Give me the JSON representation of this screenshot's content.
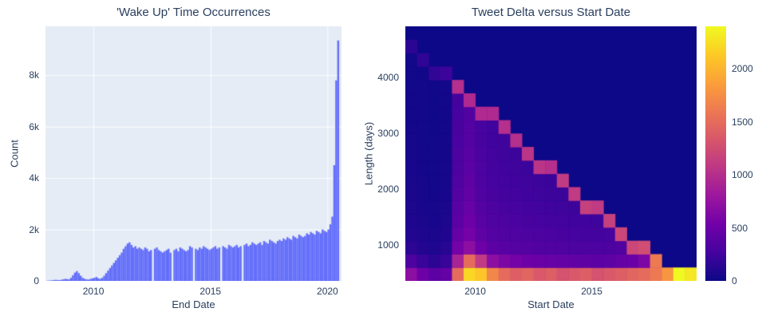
{
  "chart_data": [
    {
      "type": "bar",
      "title": "'Wake Up' Time Occurrences",
      "xlabel": "End Date",
      "ylabel": "Count",
      "x_start": 2008.0,
      "bin_years": 0.0833333,
      "xlim": [
        2007.95,
        2020.6
      ],
      "ylim": [
        0,
        9900
      ],
      "bar_color": "#636efa",
      "plot_bg": "#e5ecf6",
      "grid_color": "#ffffff",
      "xticks": [
        {
          "v": 2010,
          "label": "2010"
        },
        {
          "v": 2015,
          "label": "2015"
        },
        {
          "v": 2020,
          "label": "2020"
        }
      ],
      "yticks": [
        {
          "v": 0,
          "label": "0"
        },
        {
          "v": 2000,
          "label": "2k"
        },
        {
          "v": 4000,
          "label": "4k"
        },
        {
          "v": 6000,
          "label": "6k"
        },
        {
          "v": 8000,
          "label": "8k"
        }
      ],
      "values": [
        10,
        15,
        20,
        30,
        40,
        35,
        30,
        40,
        60,
        80,
        70,
        60,
        120,
        220,
        320,
        380,
        300,
        200,
        120,
        80,
        60,
        50,
        80,
        100,
        120,
        150,
        100,
        80,
        120,
        200,
        300,
        400,
        500,
        600,
        700,
        800,
        900,
        1000,
        1100,
        1250,
        1350,
        1450,
        1500,
        1400,
        1300,
        1350,
        1250,
        1300,
        1250,
        1200,
        1300,
        1250,
        1150,
        1200,
        0,
        1250,
        1300,
        1200,
        1150,
        1100,
        1150,
        1200,
        1250,
        1100,
        0,
        1200,
        1250,
        1150,
        1300,
        1250,
        1200,
        1150,
        1200,
        1350,
        1300,
        0,
        1250,
        1200,
        1300,
        1250,
        1350,
        1300,
        1250,
        1200,
        1250,
        1300,
        1350,
        1250,
        1300,
        0,
        1350,
        1300,
        1250,
        1400,
        1350,
        1300,
        1350,
        1400,
        1300,
        1350,
        0,
        1400,
        1450,
        1350,
        1400,
        1500,
        1450,
        1400,
        1450,
        1500,
        1400,
        1550,
        1500,
        1450,
        1600,
        1550,
        1500,
        1450,
        1550,
        1600,
        1550,
        1650,
        1600,
        1700,
        1650,
        1600,
        1750,
        1700,
        1650,
        1800,
        1750,
        1700,
        1750,
        1850,
        1800,
        1900,
        1850,
        1800,
        1950,
        1900,
        1850,
        2000,
        1950,
        1900,
        2000,
        2200,
        2500,
        4500,
        7800,
        9350
      ]
    },
    {
      "type": "heatmap",
      "title": "Tweet Delta versus Start Date",
      "xlabel": "Start Date",
      "ylabel": "Length (days)",
      "x0": 2007.0,
      "dx": 0.5,
      "y0": 350,
      "dy": 240,
      "xlim": [
        2007.0,
        2019.5
      ],
      "ylim": [
        350,
        4910
      ],
      "zmin": 0,
      "zmax": 2400,
      "xticks": [
        {
          "v": 2010,
          "label": "2010"
        },
        {
          "v": 2015,
          "label": "2015"
        }
      ],
      "yticks": [
        {
          "v": 1000,
          "label": "1000"
        },
        {
          "v": 2000,
          "label": "2000"
        },
        {
          "v": 3000,
          "label": "3000"
        },
        {
          "v": 4000,
          "label": "4000"
        }
      ],
      "colorbar_ticks": [
        {
          "v": 0,
          "label": "0"
        },
        {
          "v": 500,
          "label": "500"
        },
        {
          "v": 1000,
          "label": "1000"
        },
        {
          "v": 1500,
          "label": "1500"
        },
        {
          "v": 2000,
          "label": "2000"
        }
      ],
      "colorscale": [
        [
          0.0,
          "#0d0887"
        ],
        [
          0.1111,
          "#46039f"
        ],
        [
          0.2222,
          "#7201a8"
        ],
        [
          0.3333,
          "#9c179e"
        ],
        [
          0.4444,
          "#bd3786"
        ],
        [
          0.5556,
          "#d8576b"
        ],
        [
          0.6667,
          "#ed7953"
        ],
        [
          0.7778,
          "#fb9f3a"
        ],
        [
          0.8889,
          "#fdca26"
        ],
        [
          1.0,
          "#f0f921"
        ]
      ],
      "z": [
        [
          700,
          500,
          400,
          450,
          1500,
          2200,
          2100,
          1700,
          1500,
          1400,
          1450,
          1350,
          1400,
          1300,
          1350,
          1400,
          1300,
          1350,
          1400,
          1450,
          1500,
          1600,
          1800,
          2400,
          2300
        ],
        [
          300,
          200,
          150,
          200,
          900,
          1500,
          1100,
          700,
          600,
          550,
          500,
          480,
          460,
          450,
          430,
          420,
          400,
          420,
          450,
          480,
          600,
          1600,
          0,
          0,
          0
        ],
        [
          150,
          100,
          80,
          120,
          550,
          700,
          500,
          400,
          380,
          360,
          350,
          340,
          330,
          320,
          310,
          300,
          300,
          310,
          330,
          1200,
          1250,
          0,
          0,
          0,
          0
        ],
        [
          100,
          80,
          60,
          90,
          450,
          550,
          420,
          350,
          330,
          320,
          310,
          300,
          290,
          280,
          270,
          260,
          260,
          270,
          1200,
          0,
          0,
          0,
          0,
          0,
          0
        ],
        [
          80,
          60,
          50,
          70,
          400,
          500,
          380,
          320,
          300,
          290,
          280,
          270,
          260,
          250,
          245,
          240,
          235,
          1150,
          0,
          0,
          0,
          0,
          0,
          0,
          0
        ],
        [
          70,
          50,
          40,
          60,
          380,
          460,
          350,
          300,
          280,
          270,
          260,
          250,
          240,
          230,
          225,
          1150,
          1100,
          0,
          0,
          0,
          0,
          0,
          0,
          0,
          0
        ],
        [
          60,
          45,
          35,
          50,
          350,
          430,
          330,
          280,
          260,
          250,
          240,
          230,
          220,
          215,
          1100,
          0,
          0,
          0,
          0,
          0,
          0,
          0,
          0,
          0,
          0
        ],
        [
          55,
          40,
          30,
          45,
          330,
          410,
          310,
          270,
          250,
          240,
          230,
          220,
          210,
          1100,
          0,
          0,
          0,
          0,
          0,
          0,
          0,
          0,
          0,
          0,
          0
        ],
        [
          50,
          35,
          28,
          40,
          310,
          390,
          300,
          260,
          240,
          230,
          215,
          1050,
          1000,
          0,
          0,
          0,
          0,
          0,
          0,
          0,
          0,
          0,
          0,
          0,
          0
        ],
        [
          45,
          32,
          25,
          38,
          300,
          370,
          290,
          250,
          235,
          225,
          1050,
          0,
          0,
          0,
          0,
          0,
          0,
          0,
          0,
          0,
          0,
          0,
          0,
          0,
          0
        ],
        [
          40,
          30,
          22,
          35,
          290,
          360,
          280,
          245,
          230,
          1000,
          0,
          0,
          0,
          0,
          0,
          0,
          0,
          0,
          0,
          0,
          0,
          0,
          0,
          0,
          0
        ],
        [
          38,
          28,
          20,
          32,
          280,
          350,
          270,
          240,
          1000,
          0,
          0,
          0,
          0,
          0,
          0,
          0,
          0,
          0,
          0,
          0,
          0,
          0,
          0,
          0,
          0
        ],
        [
          35,
          26,
          18,
          30,
          270,
          340,
          950,
          950,
          0,
          0,
          0,
          0,
          0,
          0,
          0,
          0,
          0,
          0,
          0,
          0,
          0,
          0,
          0,
          0,
          0
        ],
        [
          32,
          24,
          16,
          28,
          260,
          950,
          0,
          0,
          0,
          0,
          0,
          0,
          0,
          0,
          0,
          0,
          0,
          0,
          0,
          0,
          0,
          0,
          0,
          0,
          0
        ],
        [
          30,
          22,
          15,
          25,
          1000,
          0,
          0,
          0,
          0,
          0,
          0,
          0,
          0,
          0,
          0,
          0,
          0,
          0,
          0,
          0,
          0,
          0,
          0,
          0,
          0
        ],
        [
          28,
          20,
          180,
          220,
          0,
          0,
          0,
          0,
          0,
          0,
          0,
          0,
          0,
          0,
          0,
          0,
          0,
          0,
          0,
          0,
          0,
          0,
          0,
          0,
          0
        ],
        [
          25,
          160,
          0,
          0,
          0,
          0,
          0,
          0,
          0,
          0,
          0,
          0,
          0,
          0,
          0,
          0,
          0,
          0,
          0,
          0,
          0,
          0,
          0,
          0,
          0
        ],
        [
          150,
          0,
          0,
          0,
          0,
          0,
          0,
          0,
          0,
          0,
          0,
          0,
          0,
          0,
          0,
          0,
          0,
          0,
          0,
          0,
          0,
          0,
          0,
          0,
          0
        ],
        [
          0,
          0,
          0,
          0,
          0,
          0,
          0,
          0,
          0,
          0,
          0,
          0,
          0,
          0,
          0,
          0,
          0,
          0,
          0,
          0,
          0,
          0,
          0,
          0,
          0
        ]
      ]
    }
  ]
}
